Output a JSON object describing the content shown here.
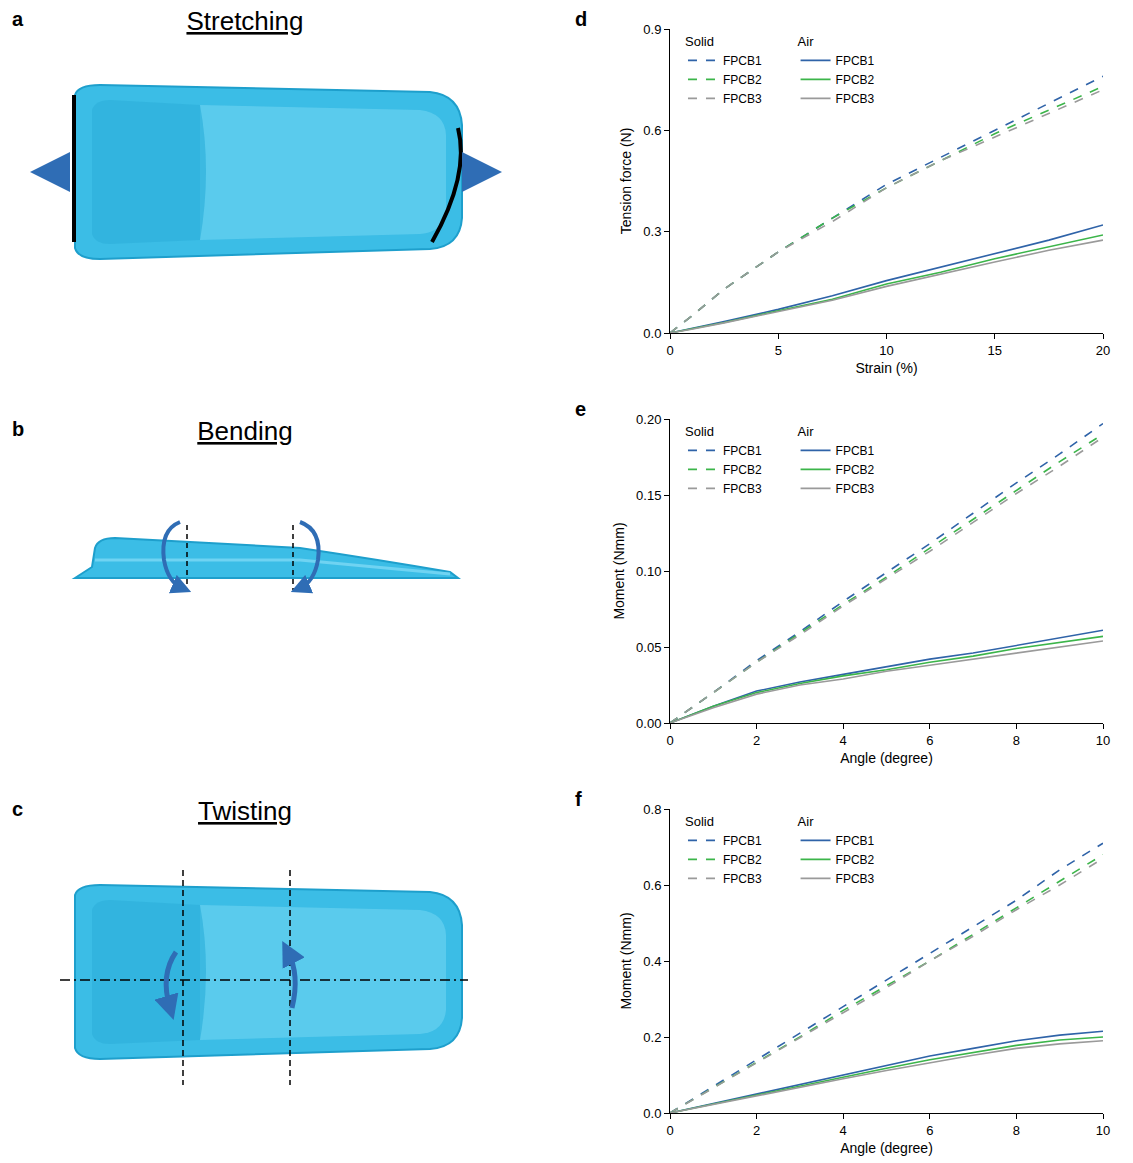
{
  "diagrams": [
    {
      "panel": "a",
      "title": "Stretching"
    },
    {
      "panel": "b",
      "title": "Bending"
    },
    {
      "panel": "c",
      "title": "Twisting"
    }
  ],
  "chart_data": [
    {
      "panel": "d",
      "type": "line",
      "x_label": "Strain (%)",
      "y_label": "Tension force (N)",
      "xlim": [
        0,
        20
      ],
      "xticks": [
        0,
        5,
        10,
        15,
        20
      ],
      "ylim": [
        0,
        0.9
      ],
      "yticks": [
        {
          "value": 0,
          "label": "0.0"
        },
        0.3,
        0.6,
        0.9
      ],
      "grid": false,
      "legend": "upper left",
      "x": [
        0,
        1,
        2.5,
        5,
        7.5,
        10,
        12.5,
        15,
        17.5,
        20
      ],
      "series": [
        {
          "name": "FPCB1",
          "group": "Solid",
          "color": "#2f63a8",
          "line_style": "dash",
          "values": [
            0,
            0.05,
            0.13,
            0.24,
            0.34,
            0.44,
            0.52,
            0.6,
            0.68,
            0.76
          ]
        },
        {
          "name": "FPCB2",
          "group": "Solid",
          "color": "#3cb54a",
          "line_style": "dash",
          "values": [
            0,
            0.05,
            0.13,
            0.24,
            0.34,
            0.43,
            0.51,
            0.59,
            0.66,
            0.73
          ]
        },
        {
          "name": "FPCB3",
          "group": "Solid",
          "color": "#9a9a9a",
          "line_style": "dash",
          "values": [
            0,
            0.05,
            0.13,
            0.24,
            0.33,
            0.43,
            0.51,
            0.58,
            0.65,
            0.72
          ]
        },
        {
          "name": "FPCB1",
          "group": "Air",
          "color": "#2f63a8",
          "line_style": "solid",
          "values": [
            0,
            0.013,
            0.034,
            0.07,
            0.11,
            0.155,
            0.195,
            0.235,
            0.275,
            0.32
          ]
        },
        {
          "name": "FPCB2",
          "group": "Air",
          "color": "#3cb54a",
          "line_style": "solid",
          "values": [
            0,
            0.012,
            0.031,
            0.066,
            0.1,
            0.145,
            0.18,
            0.22,
            0.255,
            0.29
          ]
        },
        {
          "name": "FPCB3",
          "group": "Air",
          "color": "#9a9a9a",
          "line_style": "solid",
          "values": [
            0,
            0.011,
            0.03,
            0.063,
            0.097,
            0.138,
            0.175,
            0.21,
            0.245,
            0.275
          ]
        }
      ]
    },
    {
      "panel": "e",
      "type": "line",
      "x_label": "Angle (degree)",
      "y_label": "Moment (Nmm)",
      "xlim": [
        0,
        10
      ],
      "xticks": [
        0,
        2,
        4,
        6,
        8,
        10
      ],
      "ylim": [
        0,
        0.2
      ],
      "yticks": [
        {
          "value": 0,
          "label": "0.00"
        },
        {
          "value": 0.05,
          "label": "0.05"
        },
        {
          "value": 0.1,
          "label": "0.10"
        },
        {
          "value": 0.15,
          "label": "0.15"
        },
        {
          "value": 0.2,
          "label": "0.20"
        }
      ],
      "grid": false,
      "legend": "upper left",
      "x": [
        0,
        1,
        2,
        3,
        4,
        5,
        6,
        7,
        8,
        9,
        10
      ],
      "series": [
        {
          "name": "FPCB1",
          "group": "Solid",
          "color": "#2f63a8",
          "line_style": "dash",
          "values": [
            0,
            0.02,
            0.041,
            0.06,
            0.08,
            0.099,
            0.118,
            0.138,
            0.158,
            0.177,
            0.197
          ]
        },
        {
          "name": "FPCB2",
          "group": "Solid",
          "color": "#3cb54a",
          "line_style": "dash",
          "values": [
            0,
            0.02,
            0.04,
            0.059,
            0.078,
            0.096,
            0.115,
            0.134,
            0.153,
            0.172,
            0.19
          ]
        },
        {
          "name": "FPCB3",
          "group": "Solid",
          "color": "#9a9a9a",
          "line_style": "dash",
          "values": [
            0,
            0.02,
            0.04,
            0.058,
            0.077,
            0.095,
            0.113,
            0.132,
            0.151,
            0.169,
            0.188
          ]
        },
        {
          "name": "FPCB1",
          "group": "Air",
          "color": "#2f63a8",
          "line_style": "solid",
          "values": [
            0,
            0.011,
            0.021,
            0.027,
            0.032,
            0.037,
            0.042,
            0.046,
            0.051,
            0.056,
            0.061
          ]
        },
        {
          "name": "FPCB2",
          "group": "Air",
          "color": "#3cb54a",
          "line_style": "solid",
          "values": [
            0,
            0.011,
            0.02,
            0.026,
            0.031,
            0.035,
            0.04,
            0.044,
            0.049,
            0.053,
            0.057
          ]
        },
        {
          "name": "FPCB3",
          "group": "Air",
          "color": "#9a9a9a",
          "line_style": "solid",
          "values": [
            0,
            0.01,
            0.019,
            0.025,
            0.029,
            0.034,
            0.038,
            0.042,
            0.046,
            0.05,
            0.054
          ]
        }
      ]
    },
    {
      "panel": "f",
      "type": "line",
      "x_label": "Angle (degree)",
      "y_label": "Moment (Nmm)",
      "xlim": [
        0,
        10
      ],
      "xticks": [
        0,
        2,
        4,
        6,
        8,
        10
      ],
      "ylim": [
        0,
        0.8
      ],
      "yticks": [
        {
          "value": 0,
          "label": "0.0"
        },
        0.2,
        0.4,
        0.6,
        0.8
      ],
      "grid": false,
      "legend": "upper left",
      "x": [
        0,
        1,
        2,
        3,
        4,
        5,
        6,
        7,
        8,
        9,
        10
      ],
      "series": [
        {
          "name": "FPCB1",
          "group": "Solid",
          "color": "#2f63a8",
          "line_style": "dash",
          "values": [
            0,
            0.07,
            0.14,
            0.21,
            0.28,
            0.35,
            0.42,
            0.49,
            0.56,
            0.64,
            0.71
          ]
        },
        {
          "name": "FPCB2",
          "group": "Solid",
          "color": "#3cb54a",
          "line_style": "dash",
          "values": [
            0,
            0.067,
            0.135,
            0.2,
            0.27,
            0.335,
            0.4,
            0.47,
            0.54,
            0.61,
            0.68
          ]
        },
        {
          "name": "FPCB3",
          "group": "Solid",
          "color": "#9a9a9a",
          "line_style": "dash",
          "values": [
            0,
            0.066,
            0.133,
            0.2,
            0.265,
            0.33,
            0.4,
            0.465,
            0.535,
            0.6,
            0.67
          ]
        },
        {
          "name": "FPCB1",
          "group": "Air",
          "color": "#2f63a8",
          "line_style": "solid",
          "values": [
            0,
            0.025,
            0.05,
            0.075,
            0.1,
            0.125,
            0.15,
            0.17,
            0.19,
            0.205,
            0.215
          ]
        },
        {
          "name": "FPCB2",
          "group": "Air",
          "color": "#3cb54a",
          "line_style": "solid",
          "values": [
            0,
            0.024,
            0.048,
            0.071,
            0.095,
            0.118,
            0.14,
            0.16,
            0.178,
            0.192,
            0.2
          ]
        },
        {
          "name": "FPCB3",
          "group": "Air",
          "color": "#9a9a9a",
          "line_style": "solid",
          "values": [
            0,
            0.023,
            0.046,
            0.068,
            0.09,
            0.112,
            0.133,
            0.152,
            0.17,
            0.182,
            0.19
          ]
        }
      ]
    }
  ]
}
